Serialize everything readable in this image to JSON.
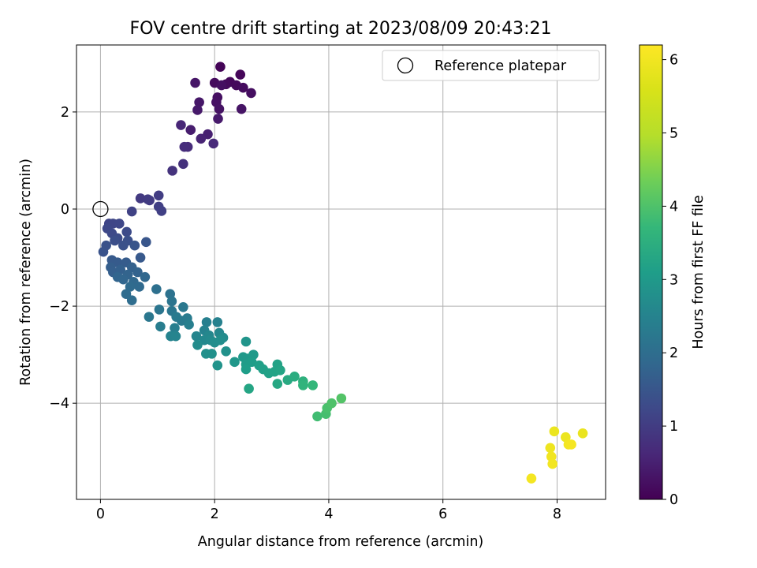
{
  "chart_data": {
    "type": "scatter",
    "title": "FOV centre drift starting at 2023/08/09 20:43:21",
    "xlabel": "Angular distance from reference (arcmin)",
    "ylabel": "Rotation from reference (arcmin)",
    "xlim": [
      -0.42,
      8.85
    ],
    "ylim": [
      -5.98,
      3.38
    ],
    "xticks": [
      0,
      2,
      4,
      6,
      8
    ],
    "yticks": [
      2,
      0,
      -2,
      -4
    ],
    "ytick_labels": [
      "2",
      "0",
      "−2",
      "−4"
    ],
    "grid": true,
    "legend": {
      "position": "top-right",
      "entries": [
        "Reference platepar"
      ]
    },
    "reference_point": {
      "x": 0,
      "y": 0
    },
    "colorbar": {
      "label": "Hours from first FF file",
      "range": [
        0,
        6.2
      ],
      "ticks": [
        0,
        1,
        2,
        3,
        4,
        5,
        6
      ],
      "colormap": "viridis"
    },
    "points": [
      {
        "x": 2.1,
        "y": 2.93,
        "c": 0.05
      },
      {
        "x": 2.45,
        "y": 2.77,
        "c": 0.08
      },
      {
        "x": 2.27,
        "y": 2.62,
        "c": 0.1
      },
      {
        "x": 2.38,
        "y": 2.55,
        "c": 0.12
      },
      {
        "x": 2.2,
        "y": 2.57,
        "c": 0.14
      },
      {
        "x": 2.0,
        "y": 2.6,
        "c": 0.16
      },
      {
        "x": 2.5,
        "y": 2.5,
        "c": 0.18
      },
      {
        "x": 2.64,
        "y": 2.39,
        "c": 0.2
      },
      {
        "x": 2.12,
        "y": 2.55,
        "c": 0.22
      },
      {
        "x": 2.05,
        "y": 2.3,
        "c": 0.24
      },
      {
        "x": 2.03,
        "y": 2.2,
        "c": 0.26
      },
      {
        "x": 2.08,
        "y": 2.06,
        "c": 0.28
      },
      {
        "x": 2.47,
        "y": 2.06,
        "c": 0.3
      },
      {
        "x": 1.66,
        "y": 2.6,
        "c": 0.32
      },
      {
        "x": 1.73,
        "y": 2.2,
        "c": 0.35
      },
      {
        "x": 1.7,
        "y": 2.04,
        "c": 0.38
      },
      {
        "x": 2.06,
        "y": 1.86,
        "c": 0.4
      },
      {
        "x": 1.58,
        "y": 1.63,
        "c": 0.45
      },
      {
        "x": 1.88,
        "y": 1.54,
        "c": 0.5
      },
      {
        "x": 1.76,
        "y": 1.45,
        "c": 0.55
      },
      {
        "x": 1.41,
        "y": 1.73,
        "c": 0.6
      },
      {
        "x": 1.98,
        "y": 1.35,
        "c": 0.65
      },
      {
        "x": 1.53,
        "y": 1.28,
        "c": 0.7
      },
      {
        "x": 1.47,
        "y": 1.28,
        "c": 0.72
      },
      {
        "x": 1.45,
        "y": 0.93,
        "c": 0.78
      },
      {
        "x": 1.26,
        "y": 0.79,
        "c": 0.82
      },
      {
        "x": 0.7,
        "y": 0.22,
        "c": 0.95
      },
      {
        "x": 0.86,
        "y": 0.18,
        "c": 0.98
      },
      {
        "x": 0.83,
        "y": 0.2,
        "c": 1.0
      },
      {
        "x": 1.02,
        "y": 0.28,
        "c": 1.02
      },
      {
        "x": 1.02,
        "y": 0.05,
        "c": 1.05
      },
      {
        "x": 1.07,
        "y": -0.04,
        "c": 1.08
      },
      {
        "x": 0.55,
        "y": -0.05,
        "c": 1.1
      },
      {
        "x": 0.15,
        "y": -0.3,
        "c": 1.15
      },
      {
        "x": 0.22,
        "y": -0.3,
        "c": 1.18
      },
      {
        "x": 0.33,
        "y": -0.3,
        "c": 1.2
      },
      {
        "x": 0.12,
        "y": -0.4,
        "c": 1.22
      },
      {
        "x": 0.2,
        "y": -0.5,
        "c": 1.25
      },
      {
        "x": 0.46,
        "y": -0.47,
        "c": 1.28
      },
      {
        "x": 0.3,
        "y": -0.6,
        "c": 1.3
      },
      {
        "x": 0.25,
        "y": -0.65,
        "c": 1.35
      },
      {
        "x": 0.48,
        "y": -0.65,
        "c": 1.38
      },
      {
        "x": 0.4,
        "y": -0.75,
        "c": 1.4
      },
      {
        "x": 0.1,
        "y": -0.75,
        "c": 1.42
      },
      {
        "x": 0.05,
        "y": -0.88,
        "c": 1.45
      },
      {
        "x": 0.6,
        "y": -0.75,
        "c": 1.48
      },
      {
        "x": 0.8,
        "y": -0.68,
        "c": 1.5
      },
      {
        "x": 0.7,
        "y": -1.0,
        "c": 1.55
      },
      {
        "x": 0.2,
        "y": -1.05,
        "c": 1.58
      },
      {
        "x": 0.3,
        "y": -1.1,
        "c": 1.6
      },
      {
        "x": 0.45,
        "y": -1.1,
        "c": 1.62
      },
      {
        "x": 0.18,
        "y": -1.2,
        "c": 1.65
      },
      {
        "x": 0.22,
        "y": -1.3,
        "c": 1.68
      },
      {
        "x": 0.35,
        "y": -1.25,
        "c": 1.7
      },
      {
        "x": 0.55,
        "y": -1.2,
        "c": 1.72
      },
      {
        "x": 0.65,
        "y": -1.3,
        "c": 1.75
      },
      {
        "x": 0.48,
        "y": -1.35,
        "c": 1.78
      },
      {
        "x": 0.3,
        "y": -1.4,
        "c": 1.8
      },
      {
        "x": 0.4,
        "y": -1.45,
        "c": 1.82
      },
      {
        "x": 0.78,
        "y": -1.4,
        "c": 1.85
      },
      {
        "x": 0.58,
        "y": -1.5,
        "c": 1.88
      },
      {
        "x": 0.68,
        "y": -1.6,
        "c": 1.9
      },
      {
        "x": 0.52,
        "y": -1.6,
        "c": 1.92
      },
      {
        "x": 0.45,
        "y": -1.75,
        "c": 1.95
      },
      {
        "x": 0.55,
        "y": -1.88,
        "c": 1.98
      },
      {
        "x": 0.98,
        "y": -1.65,
        "c": 2.05
      },
      {
        "x": 1.22,
        "y": -1.75,
        "c": 2.1
      },
      {
        "x": 1.25,
        "y": -1.9,
        "c": 2.15
      },
      {
        "x": 1.03,
        "y": -2.07,
        "c": 2.18
      },
      {
        "x": 1.25,
        "y": -2.1,
        "c": 2.2
      },
      {
        "x": 0.85,
        "y": -2.22,
        "c": 2.22
      },
      {
        "x": 1.45,
        "y": -2.02,
        "c": 2.25
      },
      {
        "x": 1.33,
        "y": -2.22,
        "c": 2.28
      },
      {
        "x": 1.42,
        "y": -2.3,
        "c": 2.3
      },
      {
        "x": 1.52,
        "y": -2.25,
        "c": 2.32
      },
      {
        "x": 1.05,
        "y": -2.42,
        "c": 2.35
      },
      {
        "x": 1.3,
        "y": -2.45,
        "c": 2.38
      },
      {
        "x": 1.55,
        "y": -2.38,
        "c": 2.4
      },
      {
        "x": 1.86,
        "y": -2.33,
        "c": 2.42
      },
      {
        "x": 2.05,
        "y": -2.33,
        "c": 2.45
      },
      {
        "x": 1.82,
        "y": -2.5,
        "c": 2.48
      },
      {
        "x": 1.23,
        "y": -2.62,
        "c": 2.5
      },
      {
        "x": 1.32,
        "y": -2.62,
        "c": 2.52
      },
      {
        "x": 1.68,
        "y": -2.62,
        "c": 2.55
      },
      {
        "x": 1.9,
        "y": -2.6,
        "c": 2.58
      },
      {
        "x": 2.08,
        "y": -2.55,
        "c": 2.6
      },
      {
        "x": 1.82,
        "y": -2.7,
        "c": 2.62
      },
      {
        "x": 1.93,
        "y": -2.7,
        "c": 2.65
      },
      {
        "x": 2.15,
        "y": -2.65,
        "c": 2.68
      },
      {
        "x": 1.7,
        "y": -2.8,
        "c": 2.7
      },
      {
        "x": 2.0,
        "y": -2.75,
        "c": 2.72
      },
      {
        "x": 2.1,
        "y": -2.7,
        "c": 2.75
      },
      {
        "x": 1.85,
        "y": -2.98,
        "c": 2.78
      },
      {
        "x": 1.95,
        "y": -2.98,
        "c": 2.8
      },
      {
        "x": 2.2,
        "y": -2.93,
        "c": 2.82
      },
      {
        "x": 2.05,
        "y": -3.22,
        "c": 2.85
      },
      {
        "x": 2.55,
        "y": -2.73,
        "c": 2.9
      },
      {
        "x": 2.35,
        "y": -3.15,
        "c": 2.95
      },
      {
        "x": 2.5,
        "y": -3.05,
        "c": 2.98
      },
      {
        "x": 2.58,
        "y": -3.08,
        "c": 3.0
      },
      {
        "x": 2.68,
        "y": -3.0,
        "c": 3.02
      },
      {
        "x": 2.55,
        "y": -3.2,
        "c": 3.05
      },
      {
        "x": 2.65,
        "y": -3.15,
        "c": 3.08
      },
      {
        "x": 2.55,
        "y": -3.3,
        "c": 3.1
      },
      {
        "x": 2.78,
        "y": -3.22,
        "c": 3.12
      },
      {
        "x": 2.85,
        "y": -3.3,
        "c": 3.15
      },
      {
        "x": 2.95,
        "y": -3.38,
        "c": 3.18
      },
      {
        "x": 3.1,
        "y": -3.2,
        "c": 3.2
      },
      {
        "x": 3.05,
        "y": -3.35,
        "c": 3.22
      },
      {
        "x": 3.15,
        "y": -3.32,
        "c": 3.25
      },
      {
        "x": 2.6,
        "y": -3.7,
        "c": 3.28
      },
      {
        "x": 3.1,
        "y": -3.6,
        "c": 3.32
      },
      {
        "x": 3.28,
        "y": -3.52,
        "c": 3.38
      },
      {
        "x": 3.4,
        "y": -3.45,
        "c": 3.45
      },
      {
        "x": 3.55,
        "y": -3.55,
        "c": 3.55
      },
      {
        "x": 3.55,
        "y": -3.63,
        "c": 3.62
      },
      {
        "x": 3.72,
        "y": -3.63,
        "c": 3.7
      },
      {
        "x": 3.8,
        "y": -4.27,
        "c": 3.85
      },
      {
        "x": 3.95,
        "y": -4.22,
        "c": 3.9
      },
      {
        "x": 3.97,
        "y": -4.1,
        "c": 3.95
      },
      {
        "x": 4.05,
        "y": -4.0,
        "c": 4.0
      },
      {
        "x": 4.22,
        "y": -3.9,
        "c": 4.05
      },
      {
        "x": 7.55,
        "y": -5.55,
        "c": 6.05
      },
      {
        "x": 7.88,
        "y": -4.92,
        "c": 5.95
      },
      {
        "x": 7.9,
        "y": -5.1,
        "c": 6.0
      },
      {
        "x": 7.92,
        "y": -5.25,
        "c": 6.02
      },
      {
        "x": 7.95,
        "y": -4.58,
        "c": 5.9
      },
      {
        "x": 8.15,
        "y": -4.7,
        "c": 5.92
      },
      {
        "x": 8.2,
        "y": -4.85,
        "c": 6.04
      },
      {
        "x": 8.25,
        "y": -4.85,
        "c": 6.06
      },
      {
        "x": 8.45,
        "y": -4.62,
        "c": 5.88
      }
    ]
  }
}
